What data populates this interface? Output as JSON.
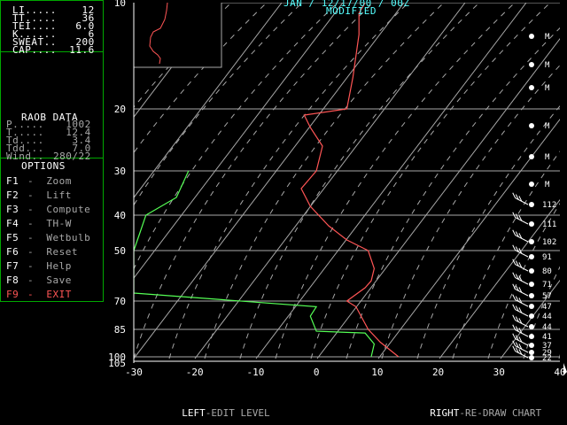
{
  "header": {
    "title": "JAN / 12/17/00 / 00Z",
    "subtitle": "MODIFIED"
  },
  "indices": [
    {
      "label": "LI",
      "value": "12"
    },
    {
      "label": "TT",
      "value": "36"
    },
    {
      "label": "TEI",
      "value": "6.0"
    },
    {
      "label": "K",
      "value": "6"
    },
    {
      "label": "SWEAT",
      "value": "200"
    },
    {
      "label": "CAP",
      "value": "11.6"
    }
  ],
  "raob": {
    "title": "RAOB DATA",
    "rows": [
      {
        "label": "P",
        "value": "1002"
      },
      {
        "label": "T",
        "value": "12.4"
      },
      {
        "label": "Td",
        "value": "3.4"
      },
      {
        "label": "Tdd",
        "value": "7.0"
      },
      {
        "label": "Wind",
        "value": "280/22"
      }
    ]
  },
  "options": {
    "title": "OPTIONS",
    "items": [
      {
        "key": "F1",
        "label": "Zoom"
      },
      {
        "key": "F2",
        "label": "Lift"
      },
      {
        "key": "F3",
        "label": "Compute"
      },
      {
        "key": "F4",
        "label": "TH-W"
      },
      {
        "key": "F5",
        "label": "Wetbulb"
      },
      {
        "key": "F6",
        "label": "Reset"
      },
      {
        "key": "F7",
        "label": "Help"
      },
      {
        "key": "F8",
        "label": "Save"
      },
      {
        "key": "F9",
        "label": "EXIT"
      }
    ]
  },
  "footer": {
    "left_key": "LEFT",
    "left_action": "-EDIT LEVEL",
    "right_key": "RIGHT",
    "right_action": "-RE-DRAW CHART"
  },
  "colors": {
    "temperature": "#ff5555",
    "dewpoint": "#55ff55",
    "panel_border": "#00a800",
    "exit": "#ff5555"
  },
  "chart_data": {
    "type": "line",
    "xlim": [
      -30,
      40
    ],
    "x_ticks": [
      -30,
      -20,
      -10,
      0,
      10,
      20,
      30,
      40
    ],
    "y_ticks": [
      10,
      20,
      30,
      40,
      50,
      70,
      85,
      100,
      105
    ],
    "series": [
      {
        "values": [
          [
            13.5,
            100
          ],
          [
            10.5,
            92
          ],
          [
            8.5,
            85
          ],
          [
            6.5,
            73
          ],
          [
            5,
            70
          ],
          [
            8,
            65
          ],
          [
            9,
            62
          ],
          [
            9.5,
            57
          ],
          [
            8.5,
            50
          ],
          [
            5,
            47
          ],
          [
            2,
            43
          ],
          [
            -1,
            38
          ],
          [
            -2.5,
            34
          ],
          [
            0,
            30
          ],
          [
            1,
            26
          ],
          [
            -1,
            23
          ],
          [
            -2,
            21
          ],
          [
            5,
            20
          ],
          [
            6,
            17
          ],
          [
            7,
            13
          ],
          [
            7,
            11
          ],
          [
            8,
            10
          ]
        ]
      },
      {
        "values": [
          [
            9,
            100
          ],
          [
            9.5,
            93
          ],
          [
            8,
            87
          ],
          [
            0,
            86
          ],
          [
            -1,
            78
          ],
          [
            0,
            73
          ],
          [
            -30,
            67
          ],
          [
            -30,
            50
          ],
          [
            -29,
            45
          ],
          [
            -28,
            40
          ],
          [
            -23,
            36
          ],
          [
            -22,
            33
          ],
          [
            -21,
            30
          ]
        ]
      }
    ],
    "wind_speeds": [
      "112",
      "111",
      "102",
      "91",
      "80",
      "71",
      "57",
      "47",
      "44",
      "44",
      "41",
      "37",
      "29",
      "22"
    ],
    "right_marks": [
      "M",
      "M",
      "M",
      "M",
      "M",
      "M"
    ]
  }
}
